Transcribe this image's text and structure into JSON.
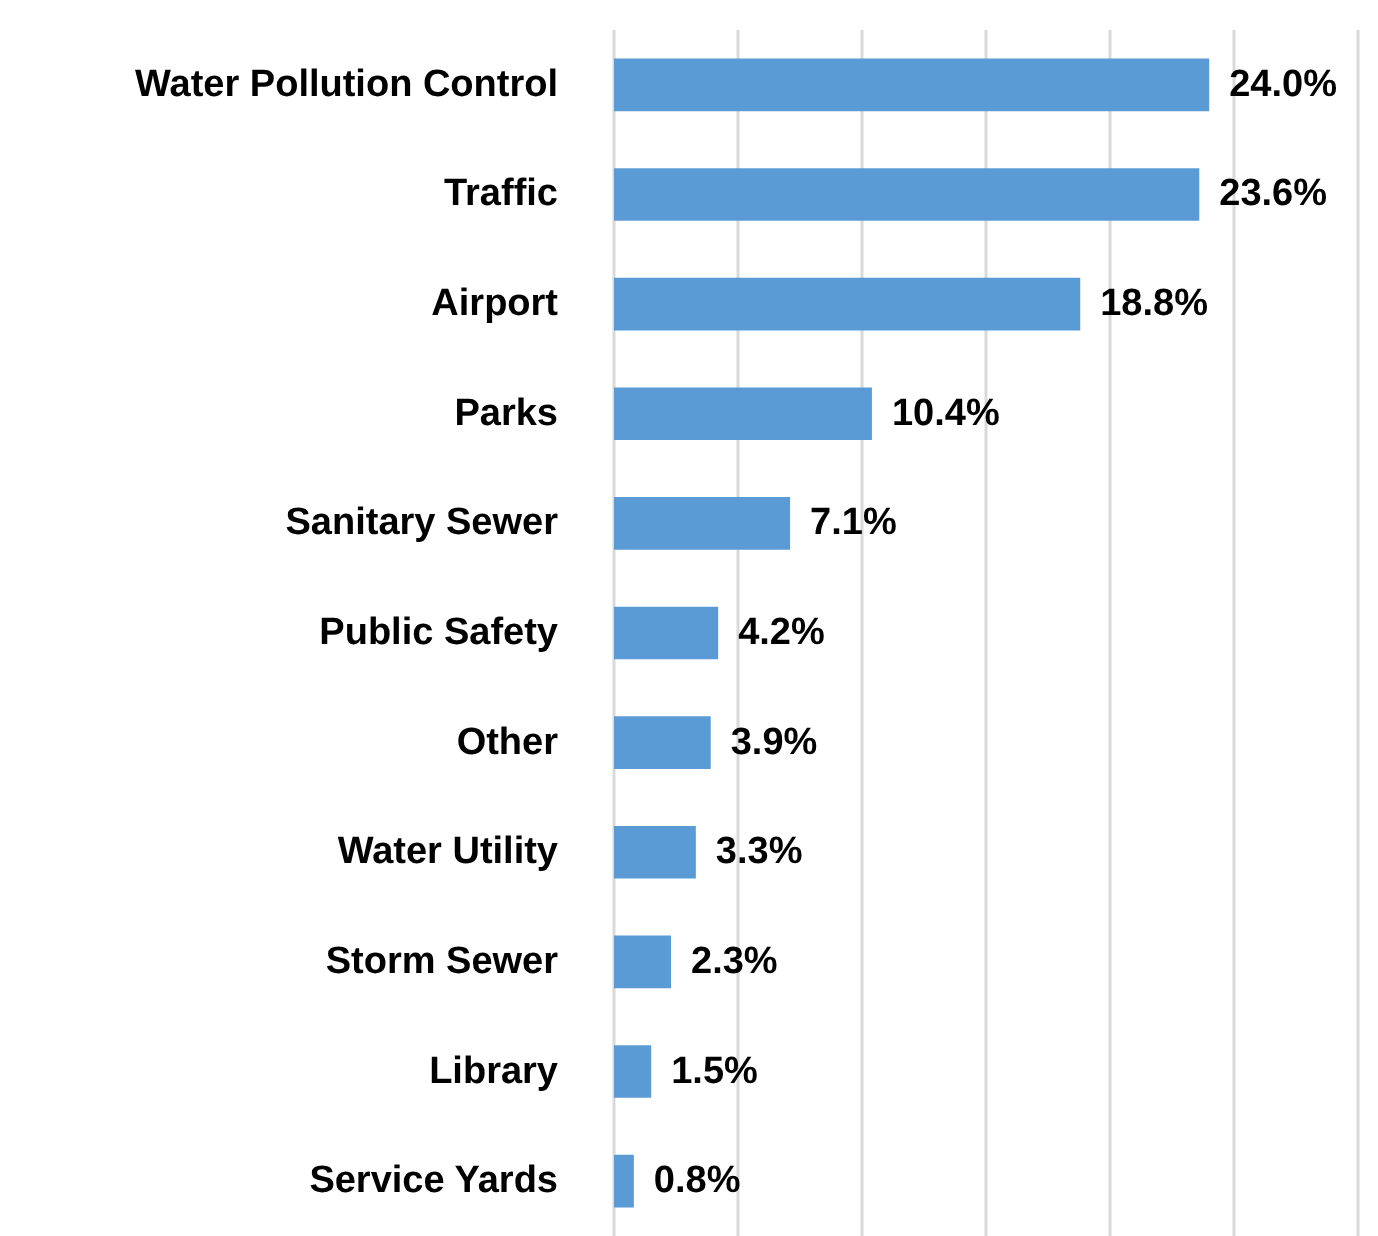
{
  "chart_data": {
    "type": "bar",
    "orientation": "horizontal",
    "categories": [
      "Water Pollution Control",
      "Traffic",
      "Airport",
      "Parks",
      "Sanitary Sewer",
      "Public Safety",
      "Other",
      "Water Utility",
      "Storm Sewer",
      "Library",
      "Service Yards"
    ],
    "values": [
      24.0,
      23.6,
      18.8,
      10.4,
      7.1,
      4.2,
      3.9,
      3.3,
      2.3,
      1.5,
      0.8
    ],
    "value_labels": [
      "24.0%",
      "23.6%",
      "18.8%",
      "10.4%",
      "7.1%",
      "4.2%",
      "3.9%",
      "3.3%",
      "2.3%",
      "1.5%",
      "0.8%"
    ],
    "color": "#5b9bd5",
    "xlim": [
      0,
      30
    ],
    "xticks": [
      {
        "value": 0,
        "label": null
      },
      {
        "value": 5,
        "label": null
      },
      {
        "value": 10,
        "label": null
      },
      {
        "value": 15,
        "label": null
      },
      {
        "value": 20,
        "label": null
      },
      {
        "value": 25,
        "label": null
      },
      {
        "value": 30,
        "label": null
      }
    ],
    "grid": "x",
    "tick_labels": "y"
  }
}
